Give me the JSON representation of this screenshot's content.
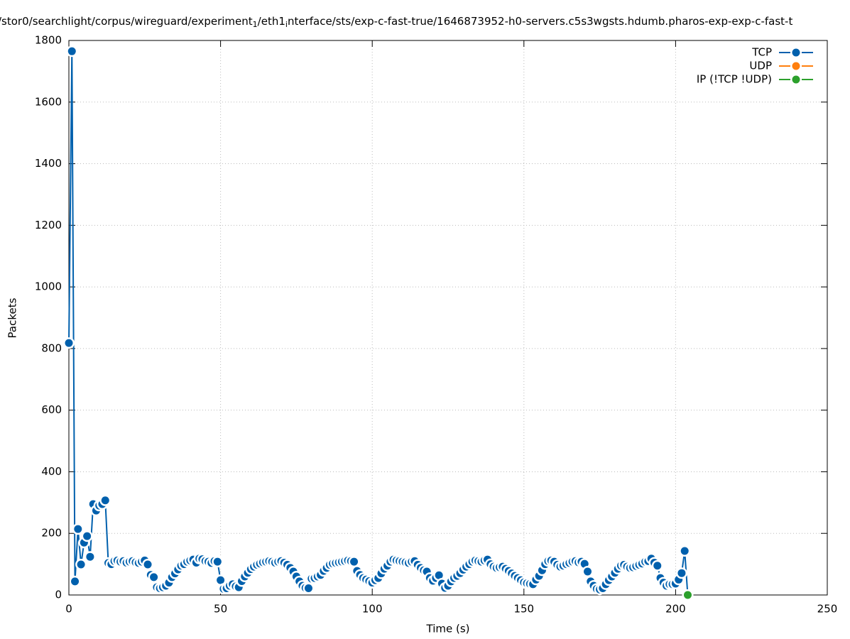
{
  "chart_data": {
    "type": "linepoints",
    "title": [
      {
        "text": "/stor0/searchlight/corpus/wireguard/experiment",
        "subscript": false
      },
      {
        "text": "1",
        "subscript": true
      },
      {
        "text": "/eth1",
        "subscript": false
      },
      {
        "text": "i",
        "subscript": true
      },
      {
        "text": "nterface/sts/exp-c-fast-true/1646873952-h0-servers.c5s3wgsts.hdumb.pharos-exp-exp-c-fast-t",
        "subscript": false
      }
    ],
    "x_label": "Time (s)",
    "y_label": "Packets",
    "xlim": [
      0,
      250
    ],
    "xticks": [
      0,
      50,
      100,
      150,
      200,
      250
    ],
    "ylim": [
      0,
      1800
    ],
    "yticks": [
      0,
      200,
      400,
      600,
      800,
      1000,
      1200,
      1400,
      1600,
      1800
    ],
    "grid": true,
    "legend": "top-right",
    "series": [
      {
        "name": "TCP",
        "color": "#0060ad",
        "x": [
          0,
          1,
          2,
          3,
          4,
          5,
          6,
          7,
          8,
          9,
          10,
          11,
          12,
          13,
          14,
          15,
          16,
          17,
          18,
          19,
          20,
          21,
          22,
          23,
          24,
          25,
          26,
          27,
          28,
          29,
          30,
          31,
          32,
          33,
          34,
          35,
          36,
          37,
          38,
          39,
          40,
          41,
          42,
          43,
          44,
          45,
          46,
          47,
          48,
          49,
          50,
          51,
          52,
          53,
          54,
          55,
          56,
          57,
          58,
          59,
          60,
          61,
          62,
          63,
          64,
          65,
          66,
          67,
          68,
          69,
          70,
          71,
          72,
          73,
          74,
          75,
          76,
          77,
          78,
          79,
          80,
          81,
          82,
          83,
          84,
          85,
          86,
          87,
          88,
          89,
          90,
          91,
          92,
          93,
          94,
          95,
          96,
          97,
          98,
          99,
          100,
          101,
          102,
          103,
          104,
          105,
          106,
          107,
          108,
          109,
          110,
          111,
          112,
          113,
          114,
          115,
          116,
          117,
          118,
          119,
          120,
          121,
          122,
          123,
          124,
          125,
          126,
          127,
          128,
          129,
          130,
          131,
          132,
          133,
          134,
          135,
          136,
          137,
          138,
          139,
          140,
          141,
          142,
          143,
          144,
          145,
          146,
          147,
          148,
          149,
          150,
          151,
          152,
          153,
          154,
          155,
          156,
          157,
          158,
          159,
          160,
          161,
          162,
          163,
          164,
          165,
          166,
          167,
          168,
          169,
          170,
          171,
          172,
          173,
          174,
          175,
          176,
          177,
          178,
          179,
          180,
          181,
          182,
          183,
          184,
          185,
          186,
          187,
          188,
          189,
          190,
          191,
          192,
          193,
          194,
          195,
          196,
          197,
          198,
          199,
          200,
          201,
          202,
          203,
          204
        ],
        "values": [
          818,
          1765,
          44,
          214,
          99,
          170,
          191,
          124,
          295,
          274,
          290,
          295,
          307,
          104,
          100,
          110,
          112,
          108,
          110,
          105,
          108,
          110,
          106,
          104,
          108,
          112,
          99,
          65,
          58,
          25,
          22,
          25,
          30,
          40,
          58,
          70,
          83,
          95,
          100,
          108,
          112,
          115,
          105,
          118,
          116,
          110,
          108,
          104,
          110,
          108,
          48,
          20,
          22,
          30,
          35,
          28,
          25,
          45,
          60,
          72,
          84,
          92,
          98,
          102,
          106,
          108,
          110,
          108,
          105,
          108,
          110,
          105,
          98,
          88,
          76,
          60,
          44,
          30,
          23,
          22,
          53,
          55,
          60,
          65,
          78,
          88,
          98,
          102,
          104,
          106,
          108,
          110,
          112,
          110,
          108,
          78,
          65,
          55,
          50,
          45,
          40,
          48,
          55,
          70,
          85,
          95,
          108,
          115,
          112,
          110,
          108,
          106,
          104,
          108,
          110,
          98,
          88,
          80,
          76,
          55,
          46,
          55,
          64,
          37,
          23,
          30,
          44,
          55,
          62,
          71,
          82,
          92,
          100,
          108,
          112,
          110,
          108,
          112,
          115,
          100,
          92,
          88,
          90,
          92,
          85,
          78,
          70,
          62,
          55,
          48,
          41,
          38,
          36,
          35,
          50,
          62,
          80,
          100,
          110,
          112,
          108,
          98,
          92,
          95,
          100,
          104,
          108,
          110,
          106,
          108,
          101,
          76,
          44,
          30,
          20,
          18,
          22,
          35,
          48,
          60,
          72,
          85,
          95,
          98,
          92,
          88,
          90,
          94,
          98,
          102,
          108,
          110,
          118,
          105,
          95,
          55,
          40,
          30,
          35,
          35,
          37,
          50,
          71,
          143,
          0
        ]
      },
      {
        "name": "UDP",
        "color": "#ff7f0e",
        "x": [],
        "values": []
      },
      {
        "name": "IP (!TCP  !UDP)",
        "color": "#2ca02c",
        "x": [
          204
        ],
        "values": [
          0
        ]
      }
    ]
  }
}
